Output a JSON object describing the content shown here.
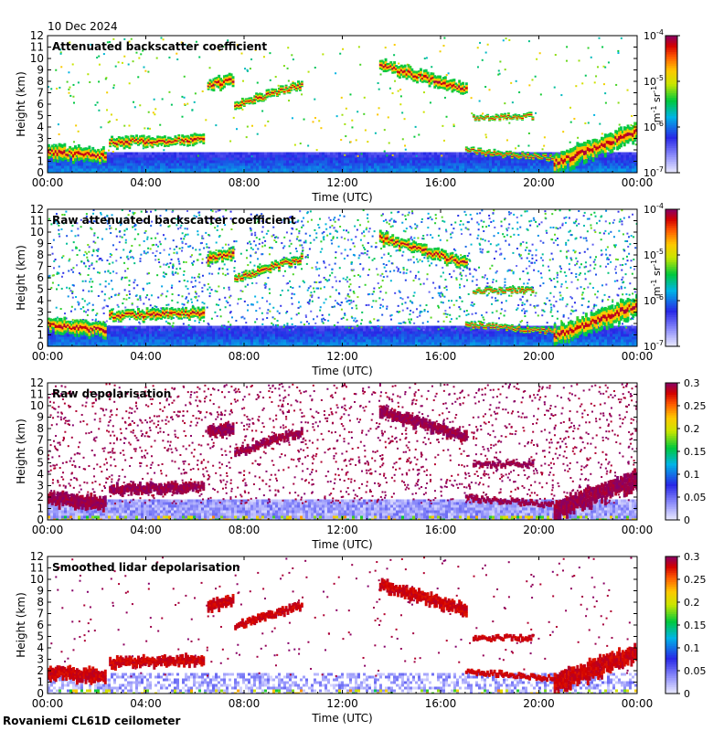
{
  "date_label": "10 Dec 2024",
  "site_label": "Rovaniemi CL61D ceilometer",
  "chart_data": [
    {
      "type": "heatmap",
      "title": "Attenuated backscatter coefficient",
      "xlabel": "Time (UTC)",
      "ylabel": "Height (km)",
      "x_ticks": [
        "00:00",
        "04:00",
        "08:00",
        "12:00",
        "16:00",
        "20:00",
        "00:00"
      ],
      "y_ticks": [
        "0",
        "1",
        "2",
        "3",
        "4",
        "5",
        "6",
        "7",
        "8",
        "9",
        "10",
        "11",
        "12"
      ],
      "ylim": [
        0,
        12
      ],
      "xlim_hours": [
        0,
        24
      ],
      "colorbar": {
        "scale": "log",
        "labels": [
          "10",
          "-7",
          "10",
          "-6",
          "10",
          "-5",
          "10",
          "-4"
        ],
        "ticks": [
          {
            "b": "10",
            "e": "-7"
          },
          {
            "b": "10",
            "e": "-6"
          },
          {
            "b": "10",
            "e": "-5"
          },
          {
            "b": "10",
            "e": "-4"
          }
        ],
        "unit_main": "m",
        "unit_exp1": "-1",
        "unit_mid": " sr",
        "unit_exp2": "-1"
      },
      "kind": "backscatter",
      "noise": 0.15
    },
    {
      "type": "heatmap",
      "title": "Raw attenuated backscatter coefficient",
      "xlabel": "Time (UTC)",
      "ylabel": "Height (km)",
      "x_ticks": [
        "00:00",
        "04:00",
        "08:00",
        "12:00",
        "16:00",
        "20:00",
        "00:00"
      ],
      "y_ticks": [
        "0",
        "1",
        "2",
        "3",
        "4",
        "5",
        "6",
        "7",
        "8",
        "9",
        "10",
        "11",
        "12"
      ],
      "ylim": [
        0,
        12
      ],
      "xlim_hours": [
        0,
        24
      ],
      "colorbar": {
        "scale": "log",
        "ticks": [
          {
            "b": "10",
            "e": "-7"
          },
          {
            "b": "10",
            "e": "-6"
          },
          {
            "b": "10",
            "e": "-5"
          },
          {
            "b": "10",
            "e": "-4"
          }
        ],
        "unit_main": "m",
        "unit_exp1": "-1",
        "unit_mid": " sr",
        "unit_exp2": "-1"
      },
      "kind": "raw_backscatter",
      "noise": 0.9
    },
    {
      "type": "heatmap",
      "title": "Raw depolarisation",
      "xlabel": "Time (UTC)",
      "ylabel": "Height (km)",
      "x_ticks": [
        "00:00",
        "04:00",
        "08:00",
        "12:00",
        "16:00",
        "20:00",
        "00:00"
      ],
      "y_ticks": [
        "0",
        "1",
        "2",
        "3",
        "4",
        "5",
        "6",
        "7",
        "8",
        "9",
        "10",
        "11",
        "12"
      ],
      "ylim": [
        0,
        12
      ],
      "xlim_hours": [
        0,
        24
      ],
      "colorbar": {
        "scale": "linear",
        "ticks": [
          "0",
          "0.05",
          "0.1",
          "0.15",
          "0.2",
          "0.25",
          "0.3"
        ],
        "range": [
          0,
          0.3
        ]
      },
      "kind": "raw_depol",
      "noise": 0.85
    },
    {
      "type": "heatmap",
      "title": "Smoothed lidar depolarisation",
      "xlabel": "Time (UTC)",
      "ylabel": "Height (km)",
      "x_ticks": [
        "00:00",
        "04:00",
        "08:00",
        "12:00",
        "16:00",
        "20:00",
        "00:00"
      ],
      "y_ticks": [
        "0",
        "1",
        "2",
        "3",
        "4",
        "5",
        "6",
        "7",
        "8",
        "9",
        "10",
        "11",
        "12"
      ],
      "ylim": [
        0,
        12
      ],
      "xlim_hours": [
        0,
        24
      ],
      "colorbar": {
        "scale": "linear",
        "ticks": [
          "0",
          "0.05",
          "0.1",
          "0.15",
          "0.2",
          "0.25",
          "0.3"
        ],
        "range": [
          0,
          0.3
        ]
      },
      "kind": "smooth_depol",
      "noise": 0.12
    }
  ],
  "cloud_layers": [
    {
      "name": "low-cloud-morning",
      "t0": 0.0,
      "t1": 2.3,
      "h0": 2.0,
      "h1": 1.6,
      "thick": 1.0
    },
    {
      "name": "low-cloud-midday",
      "t0": 2.5,
      "t1": 6.3,
      "h0": 2.8,
      "h1": 3.0,
      "thick": 0.7
    },
    {
      "name": "mid-cloud-0630",
      "t0": 6.5,
      "t1": 7.5,
      "h0": 7.8,
      "h1": 8.2,
      "thick": 0.8
    },
    {
      "name": "mid-cloud-0800",
      "t0": 7.6,
      "t1": 10.3,
      "h0": 6.0,
      "h1": 7.8,
      "thick": 0.5
    },
    {
      "name": "upper-cloud-1330",
      "t0": 13.5,
      "t1": 17.0,
      "h0": 9.6,
      "h1": 7.4,
      "thick": 0.8
    },
    {
      "name": "thin-layer-1700",
      "t0": 17.3,
      "t1": 19.7,
      "h0": 4.9,
      "h1": 5.0,
      "thick": 0.3
    },
    {
      "name": "low-layer-evening",
      "t0": 17.0,
      "t1": 20.5,
      "h0": 2.0,
      "h1": 1.4,
      "thick": 0.3
    },
    {
      "name": "night-cloud",
      "t0": 20.6,
      "t1": 24.0,
      "h0": 1.0,
      "h1": 3.8,
      "thick": 1.4
    }
  ],
  "colors": {
    "background": "#ffffff",
    "axis": "#000000"
  }
}
